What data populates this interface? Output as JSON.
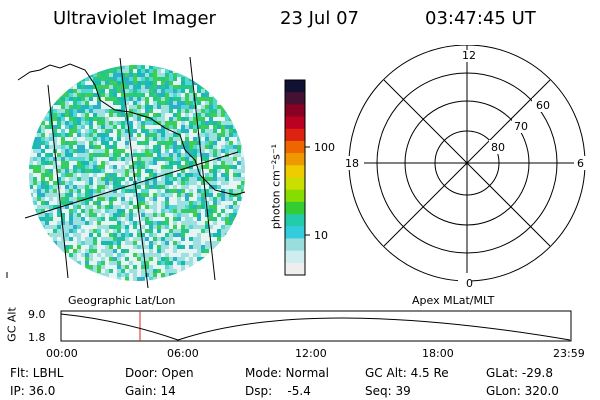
{
  "header": {
    "title": "Ultraviolet Imager",
    "date": "23 Jul 07",
    "time": "03:47:45 UT"
  },
  "colorbar": {
    "unit_label": "photon cm⁻²s⁻¹",
    "ticks": [
      "100",
      "10"
    ],
    "colors": [
      "#111133",
      "#441133",
      "#880022",
      "#bb0022",
      "#dd2211",
      "#ee6600",
      "#ee9900",
      "#eecc00",
      "#ccdd00",
      "#88dd00",
      "#33cc33",
      "#22ccaa",
      "#33ccdd",
      "#99dddd",
      "#cceeee",
      "#eeeeee"
    ]
  },
  "left_panel": {
    "label": "Geographic Lat/Lon"
  },
  "polar": {
    "label": "Apex MLat/MLT",
    "mlt_labels": {
      "top": "12",
      "right": "6",
      "bottom": "0",
      "left": "18"
    },
    "lat_labels": [
      "60",
      "70",
      "80"
    ]
  },
  "altitude_plot": {
    "ylabel": "GC Alt",
    "ticks": [
      "9.0",
      "1.8"
    ],
    "xticks": [
      "00:00",
      "06:00",
      "12:00",
      "18:00",
      "23:59"
    ],
    "marker_time": "03:47:45"
  },
  "info": {
    "row1": {
      "flt": "Flt: LBHL",
      "door": "Door: Open",
      "mode": "Mode: Normal",
      "gcalt": "GC Alt: 4.5 Re",
      "glat": "GLat: -29.8"
    },
    "row2": {
      "ip": "IP: 36.0",
      "gain": "Gain: 14",
      "dsp": "Dsp:    -5.4",
      "seq": "Seq: 39",
      "glon": "GLon: 320.0"
    }
  }
}
